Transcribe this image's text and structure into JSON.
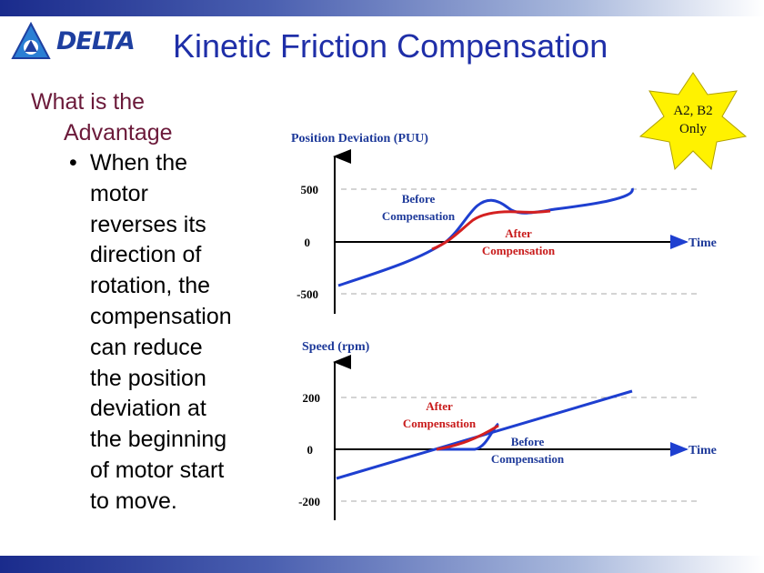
{
  "slide": {
    "title": "Kinetic Friction Compensation",
    "logo_text": "DELTA",
    "point_heading_line1": "What is the",
    "point_heading_line2": "Advantage",
    "bullet_text_lines": [
      "When the",
      "motor",
      "reverses its",
      "direction of",
      "rotation, the",
      "compensation",
      "can reduce",
      "the position",
      "deviation at",
      "the beginning",
      "of motor start",
      "to move."
    ],
    "badge_line1": "A2, B2",
    "badge_line2": "Only",
    "colors": {
      "title": "#1f2fa8",
      "heading": "#6b1a3a",
      "chart_text": "#1e3a9a",
      "before_curve": "#1e3fd0",
      "after_curve": "#d42020",
      "after_label": "#c81a1a",
      "badge_fill": "#fff200"
    }
  },
  "chart_data": [
    {
      "type": "line",
      "title": "Position Deviation (PUU)",
      "xlabel": "Time",
      "ylabel": "Position Deviation (PUU)",
      "yticks": [
        "500",
        "0",
        "-500"
      ],
      "grid": true,
      "annotations": [
        {
          "text_line1": "Before",
          "text_line2": "Compensation",
          "series": "Before Compensation"
        },
        {
          "text_line1": "After",
          "text_line2": "Compensation",
          "series": "After Compensation"
        }
      ]
    },
    {
      "type": "line",
      "title": "Speed (rpm)",
      "xlabel": "Time",
      "ylabel": "Speed (rpm)",
      "yticks": [
        "200",
        "0",
        "-200"
      ],
      "grid": true,
      "annotations": [
        {
          "text_line1": "After",
          "text_line2": "Compensation",
          "series": "After Compensation"
        },
        {
          "text_line1": "Before",
          "text_line2": "Compensation",
          "series": "Before Compensation"
        }
      ]
    }
  ]
}
